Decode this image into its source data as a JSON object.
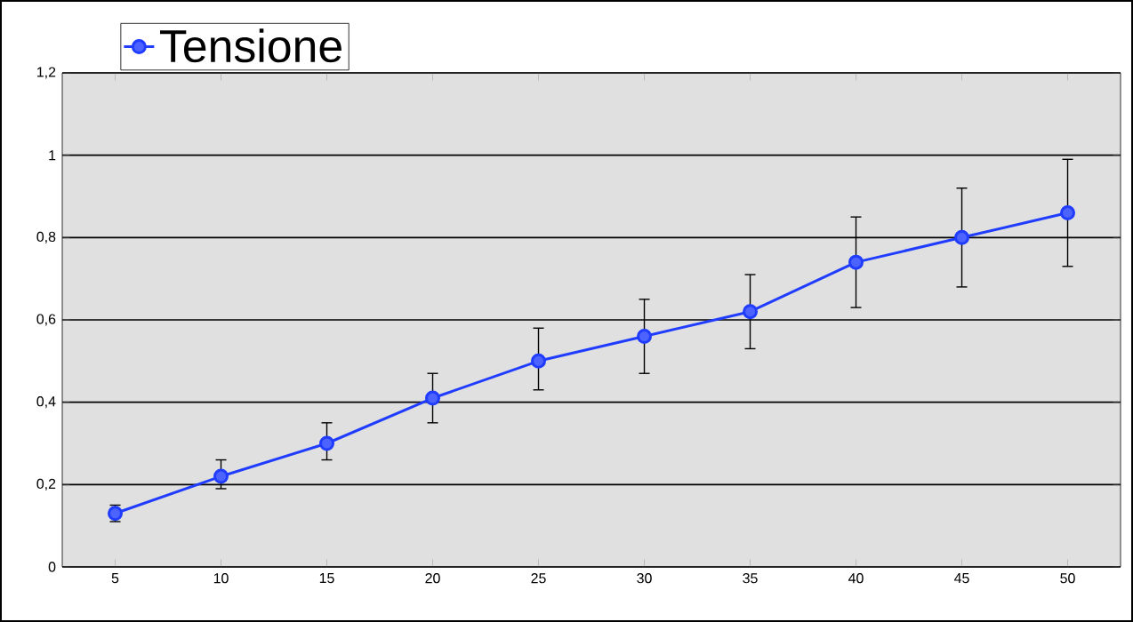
{
  "chart_data": {
    "type": "line",
    "categories": [
      "5",
      "10",
      "15",
      "20",
      "25",
      "30",
      "35",
      "40",
      "45",
      "50"
    ],
    "series": [
      {
        "name": "Tensione",
        "color": "#1f3cff",
        "values": [
          0.13,
          0.22,
          0.3,
          0.41,
          0.5,
          0.56,
          0.62,
          0.74,
          0.8,
          0.86
        ],
        "errors": [
          [
            0.11,
            0.15
          ],
          [
            0.19,
            0.26
          ],
          [
            0.26,
            0.35
          ],
          [
            0.35,
            0.47
          ],
          [
            0.43,
            0.58
          ],
          [
            0.47,
            0.65
          ],
          [
            0.53,
            0.71
          ],
          [
            0.63,
            0.85
          ],
          [
            0.68,
            0.92
          ],
          [
            0.73,
            0.99
          ]
        ]
      }
    ],
    "ylim": [
      0,
      1.2
    ],
    "yticks": [
      {
        "value": 0,
        "label": "0"
      },
      {
        "value": 0.2,
        "label": "0,2"
      },
      {
        "value": 0.4,
        "label": "0,4"
      },
      {
        "value": 0.6,
        "label": "0,6"
      },
      {
        "value": 0.8,
        "label": "0,8"
      },
      {
        "value": 1,
        "label": "1"
      },
      {
        "value": 1.2,
        "label": "1,2"
      }
    ],
    "grid": "y",
    "legend": "top left",
    "marker": "circle",
    "line_style": "solid"
  }
}
